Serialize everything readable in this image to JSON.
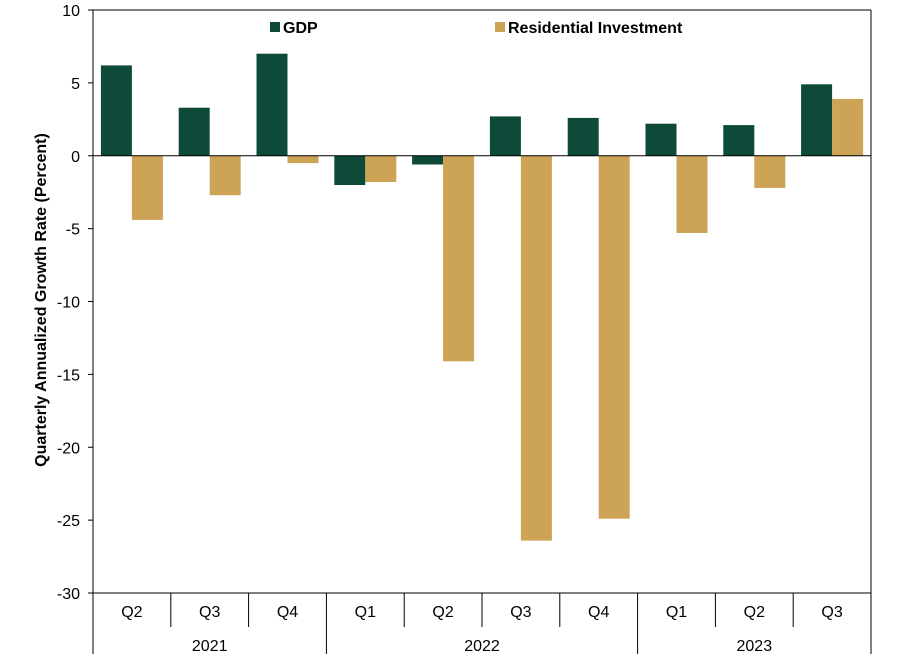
{
  "chart_data": {
    "type": "bar",
    "title": "",
    "xlabel": "",
    "ylabel": "Quarterly Annualized Growth Rate (Percent)",
    "ylim": [
      -30,
      10
    ],
    "yticks": [
      10,
      5,
      0,
      -5,
      -10,
      -15,
      -20,
      -25,
      -30
    ],
    "categories": [
      "Q2",
      "Q3",
      "Q4",
      "Q1",
      "Q2",
      "Q3",
      "Q4",
      "Q1",
      "Q2",
      "Q3"
    ],
    "year_groups": [
      {
        "label": "2021",
        "count": 3
      },
      {
        "label": "2022",
        "count": 4
      },
      {
        "label": "2023",
        "count": 3
      }
    ],
    "series": [
      {
        "name": "GDP",
        "color": "#0d4a3a",
        "values": [
          6.2,
          3.3,
          7.0,
          -2.0,
          -0.6,
          2.7,
          2.6,
          2.2,
          2.1,
          4.9
        ]
      },
      {
        "name": "Residential Investment",
        "color": "#cda356",
        "values": [
          -4.4,
          -2.7,
          -0.5,
          -1.8,
          -14.1,
          -26.4,
          -24.9,
          -5.3,
          -2.2,
          3.9
        ]
      }
    ],
    "legend_position": "top",
    "grid": false
  }
}
